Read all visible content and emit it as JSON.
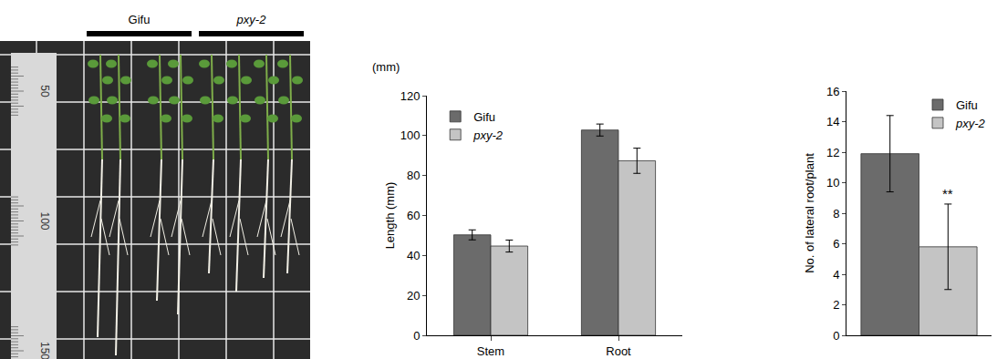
{
  "photo": {
    "groups": [
      "Gifu",
      "pxy-2"
    ],
    "ruler_labels": [
      50,
      100,
      150
    ]
  },
  "chart_data": [
    {
      "type": "bar",
      "categories": [
        "Stem",
        "Root"
      ],
      "unit_note": "(mm)",
      "y_label": "Length (mm)",
      "ylim": [
        0,
        120
      ],
      "yticks": [
        0,
        20,
        40,
        60,
        80,
        100,
        120
      ],
      "grid": false,
      "legend": "top left",
      "series": [
        {
          "name": "Gifu",
          "color": "#6b6b6b",
          "values": [
            50.3,
            102.8
          ],
          "errors": [
            2.5,
            3.0
          ]
        },
        {
          "name": "pxy-2",
          "color": "#c4c4c4",
          "values": [
            44.7,
            87.4
          ],
          "errors": [
            3.0,
            6.3
          ]
        }
      ]
    },
    {
      "type": "bar",
      "categories": [
        null
      ],
      "y_label": "No. of lateral root/plant",
      "ylim": [
        0,
        16
      ],
      "yticks": [
        0,
        2,
        4,
        6,
        8,
        10,
        12,
        14,
        16
      ],
      "grid": false,
      "legend": "top right",
      "tick_labels": "y",
      "series": [
        {
          "name": "Gifu",
          "color": "#6b6b6b",
          "values": [
            11.9
          ],
          "errors": [
            2.5
          ]
        },
        {
          "name": "pxy-2",
          "color": "#c4c4c4",
          "values": [
            5.8
          ],
          "errors": [
            2.8
          ],
          "annotation": "**"
        }
      ]
    }
  ]
}
